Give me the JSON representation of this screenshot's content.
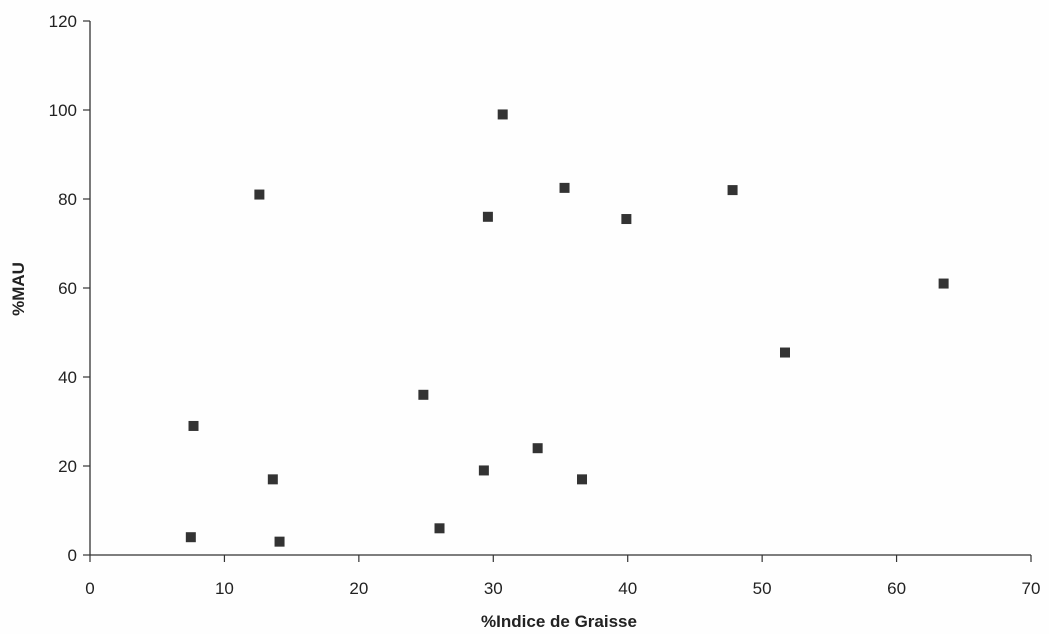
{
  "chart_data": {
    "type": "scatter",
    "title": "",
    "xlabel": "%Indice de Graisse",
    "ylabel": "%MAU",
    "xlim": [
      0,
      70
    ],
    "ylim": [
      0,
      120
    ],
    "x_ticks": [
      "0",
      "10",
      "20",
      "30",
      "40",
      "50",
      "60",
      "70"
    ],
    "y_ticks": [
      "0",
      "20",
      "40",
      "60",
      "80",
      "100",
      "120"
    ],
    "grid": false,
    "legend": "none",
    "marker": "square",
    "marker_color": "#333333",
    "series": [
      {
        "points": [
          {
            "x": 7.5,
            "y": 4
          },
          {
            "x": 7.7,
            "y": 29
          },
          {
            "x": 12.6,
            "y": 81
          },
          {
            "x": 13.6,
            "y": 17
          },
          {
            "x": 14.1,
            "y": 3
          },
          {
            "x": 24.8,
            "y": 36
          },
          {
            "x": 26.0,
            "y": 6
          },
          {
            "x": 29.3,
            "y": 19
          },
          {
            "x": 29.6,
            "y": 76
          },
          {
            "x": 30.7,
            "y": 99
          },
          {
            "x": 33.3,
            "y": 24
          },
          {
            "x": 35.3,
            "y": 82.5
          },
          {
            "x": 36.6,
            "y": 17
          },
          {
            "x": 39.9,
            "y": 75.5
          },
          {
            "x": 47.8,
            "y": 82
          },
          {
            "x": 51.7,
            "y": 45.5
          },
          {
            "x": 63.5,
            "y": 61
          }
        ]
      }
    ]
  }
}
